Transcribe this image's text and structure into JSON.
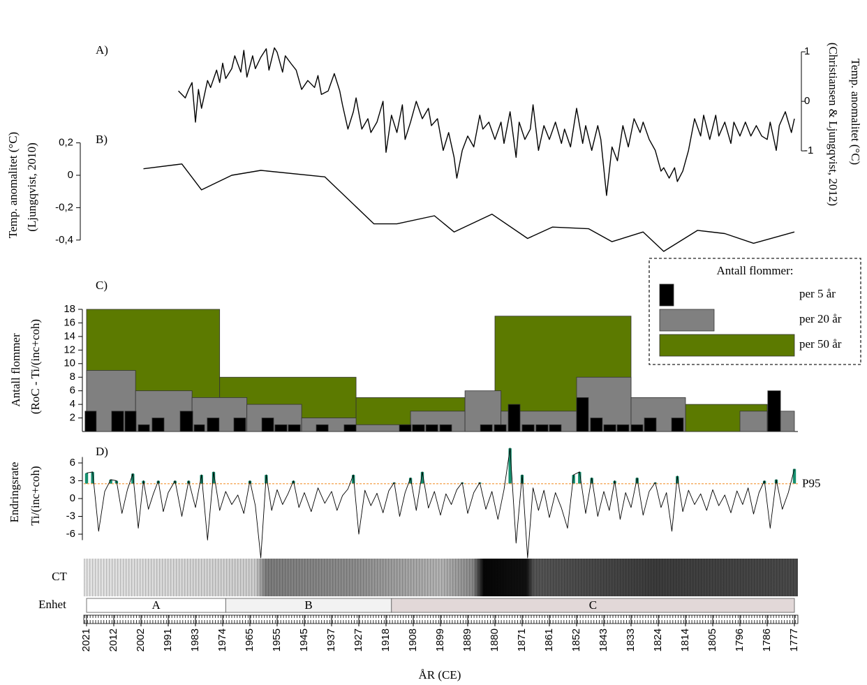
{
  "x_axis": {
    "xlabel": "ÅR (CE)",
    "xlim": [
      2021,
      1777
    ],
    "xticks": [
      2021,
      2012,
      2002,
      1991,
      1983,
      1974,
      1965,
      1955,
      1945,
      1937,
      1927,
      1918,
      1908,
      1899,
      1889,
      1880,
      1871,
      1861,
      1852,
      1843,
      1833,
      1824,
      1814,
      1805,
      1796,
      1786,
      1777
    ],
    "xtick_colors": [
      "#000000",
      "#000000",
      "#000000",
      "#000000",
      "#000000",
      "#000000",
      "#000000",
      "#000000",
      "#000000",
      "#000000",
      "#000000",
      "#000000",
      "#000000",
      "#000000",
      "#000000",
      "#000000",
      "#e8141b",
      "#e8141b",
      "#e8141b",
      "#e8141b",
      "#e8141b",
      "#e8141b",
      "#e8141b",
      "#e8141b",
      "#e8141b",
      "#e8141b",
      "#e8141b"
    ]
  },
  "chart_data": [
    {
      "type": "line",
      "panel_label": "A)",
      "ylabel": [
        "Temp. anomalitet (°C)",
        "(Christiansen & Ljungqvist, 2012)"
      ],
      "y_axis_side": "right",
      "ylim": [
        -2,
        1.2
      ],
      "yticks": [
        1,
        0,
        -1
      ],
      "color": "#000000",
      "x": [
        1988,
        1986,
        1985,
        1984,
        1983,
        1982,
        1981,
        1979,
        1978,
        1976,
        1975,
        1974,
        1973,
        1971,
        1970,
        1968,
        1967,
        1966,
        1964,
        1963,
        1961,
        1959,
        1958,
        1956,
        1955,
        1953,
        1952,
        1950,
        1948,
        1946,
        1944,
        1942,
        1941,
        1940,
        1938,
        1936,
        1934,
        1933,
        1931,
        1929,
        1928,
        1926,
        1924,
        1923,
        1921,
        1919,
        1918,
        1916,
        1914,
        1912,
        1911,
        1909,
        1907,
        1905,
        1903,
        1902,
        1900,
        1898,
        1896,
        1894,
        1893,
        1891,
        1889,
        1887,
        1885,
        1884,
        1882,
        1880,
        1878,
        1877,
        1875,
        1873,
        1872,
        1870,
        1868,
        1867,
        1865,
        1863,
        1861,
        1859,
        1857,
        1856,
        1854,
        1852,
        1850,
        1849,
        1847,
        1845,
        1844,
        1842,
        1840,
        1838,
        1836,
        1834,
        1832,
        1830,
        1829,
        1827,
        1825,
        1823,
        1822,
        1820,
        1818,
        1817,
        1815,
        1813,
        1811,
        1809,
        1808,
        1806,
        1804,
        1803,
        1801,
        1799,
        1798,
        1796,
        1794,
        1792,
        1790,
        1788,
        1786,
        1785,
        1783,
        1782,
        1780,
        1778,
        1777
      ],
      "values": [
        0.21,
        0.07,
        0.24,
        0.38,
        -0.42,
        0.24,
        -0.14,
        0.42,
        0.28,
        0.63,
        0.38,
        0.77,
        0.46,
        0.66,
        0.92,
        0.59,
        1.03,
        0.49,
        0.92,
        0.66,
        0.89,
        1.06,
        0.63,
        1.08,
        0.99,
        0.59,
        0.92,
        0.77,
        0.63,
        0.24,
        0.42,
        0.28,
        0.52,
        0.14,
        0.21,
        0.56,
        0.21,
        -0.07,
        -0.56,
        -0.21,
        0.07,
        -0.56,
        -0.35,
        -0.63,
        -0.42,
        0,
        -1.03,
        -0.28,
        -0.63,
        -0.07,
        -0.77,
        -0.42,
        0,
        -0.35,
        -0.14,
        -0.49,
        -0.35,
        -0.99,
        -0.63,
        -1.13,
        -1.55,
        -0.99,
        -0.7,
        -0.92,
        -0.28,
        -0.56,
        -0.42,
        -0.77,
        -0.42,
        -0.85,
        -0.21,
        -1.13,
        -0.42,
        -0.77,
        -0.56,
        -0.07,
        -0.99,
        -0.49,
        -0.77,
        -0.42,
        -0.85,
        -0.56,
        -0.92,
        -0.14,
        -0.85,
        -0.49,
        -0.99,
        -0.49,
        -0.77,
        -1.9,
        -0.92,
        -1.2,
        -0.49,
        -0.92,
        -0.35,
        -0.63,
        -0.42,
        -0.77,
        -0.99,
        -1.41,
        -1.34,
        -1.55,
        -1.34,
        -1.62,
        -1.41,
        -0.99,
        -0.35,
        -0.7,
        -0.28,
        -0.77,
        -0.28,
        -0.7,
        -0.42,
        -0.85,
        -0.42,
        -0.7,
        -0.42,
        -0.7,
        -0.49,
        -0.7,
        -0.77,
        -0.42,
        -0.99,
        -0.49,
        -0.21,
        -0.63,
        -0.35
      ]
    },
    {
      "type": "line",
      "panel_label": "B)",
      "ylabel": [
        "Temp. anomalitet (°C)",
        "(Ljungqvist, 2010)"
      ],
      "y_axis_side": "left",
      "ylim": [
        -0.5,
        0.25
      ],
      "yticks": [
        {
          "value": 0.2,
          "label": "0,2"
        },
        0,
        {
          "value": -0.2,
          "label": "-0,2"
        },
        {
          "value": -0.4,
          "label": "-0,4"
        }
      ],
      "color": "#000000",
      "x": [
        2001,
        1987,
        1981,
        1971,
        1961,
        1939,
        1922,
        1914,
        1901,
        1894,
        1881,
        1869,
        1860,
        1848,
        1840,
        1829,
        1822,
        1810,
        1801,
        1791,
        1777
      ],
      "values": [
        0.04,
        0.07,
        -0.09,
        0,
        0.03,
        -0.01,
        -0.3,
        -0.3,
        -0.25,
        -0.35,
        -0.24,
        -0.39,
        -0.32,
        -0.33,
        -0.41,
        -0.35,
        -0.47,
        -0.34,
        -0.36,
        -0.42,
        -0.35
      ]
    },
    {
      "type": "bar",
      "panel_label": "C)",
      "ylabel": [
        "Antall flommer",
        "(RoC - Ti/(inc+coh)"
      ],
      "y_axis_side": "left",
      "ylim": [
        0,
        18
      ],
      "yticks": [
        2,
        4,
        6,
        8,
        10,
        12,
        14,
        16,
        18
      ],
      "legend": {
        "title": "Antall flommer:",
        "position": "upper right"
      },
      "series": [
        {
          "name": "per 5 år",
          "color": "#000000",
          "bins": [
            [
              2021.5,
              2017.8
            ],
            [
              2012.7,
              2008.4
            ],
            [
              2007.9,
              2003.8
            ],
            [
              2003.0,
              1998.6
            ],
            [
              1997.5,
              1992.7
            ],
            [
              1987.5,
              1983.8
            ],
            [
              1983.4,
              1980.0
            ],
            [
              1979.1,
              1975.2
            ],
            [
              1970.3,
              1966.4
            ],
            [
              1960.6,
              1956.3
            ],
            [
              1955.8,
              1951.4
            ],
            [
              1950.9,
              1946.5
            ],
            [
              1941.5,
              1938.0
            ],
            [
              1932.4,
              1928.0
            ],
            [
              1913.1,
              1908.8
            ],
            [
              1908.3,
              1904.3
            ],
            [
              1903.8,
              1899.9
            ],
            [
              1899.2,
              1894.9
            ],
            [
              1884.8,
              1880.9
            ],
            [
              1880.2,
              1876.3
            ],
            [
              1875.6,
              1871.7
            ],
            [
              1871.0,
              1866.6
            ],
            [
              1865.9,
              1861.5
            ],
            [
              1861.0,
              1857.1
            ],
            [
              1852.0,
              1848.1
            ],
            [
              1847.4,
              1843.5
            ],
            [
              1843.0,
              1838.6
            ],
            [
              1838.1,
              1833.8
            ],
            [
              1833.0,
              1829.1
            ],
            [
              1828.6,
              1824.7
            ],
            [
              1819.1,
              1814.8
            ],
            [
              1785.8,
              1781.6
            ]
          ],
          "values": [
            3,
            3,
            3,
            1,
            2,
            3,
            1,
            2,
            2,
            2,
            1,
            1,
            1,
            1,
            1,
            1,
            1,
            1,
            1,
            1,
            4,
            1,
            1,
            1,
            5,
            2,
            1,
            1,
            1,
            2,
            2,
            6
          ]
        },
        {
          "name": "per 20 år",
          "color": "#808080",
          "bins": [
            [
              2021,
              2004
            ],
            [
              2004,
              1984
            ],
            [
              1984,
              1966
            ],
            [
              1966,
              1946
            ],
            [
              1946,
              1928
            ],
            [
              1928,
              1909
            ],
            [
              1909,
              1890
            ],
            [
              1890,
              1878
            ],
            [
              1878,
              1852
            ],
            [
              1852,
              1833
            ],
            [
              1833,
              1814
            ],
            [
              1796,
              1786
            ],
            [
              1782,
              1777
            ]
          ],
          "values": [
            9,
            6,
            5,
            4,
            2,
            1,
            3,
            6,
            3,
            8,
            5,
            3,
            3
          ]
        },
        {
          "name": "per 50 år",
          "color": "#5c7a00",
          "bins": [
            [
              2021,
              1975
            ],
            [
              1975,
              1928
            ],
            [
              1928,
              1890
            ],
            [
              1880,
              1833
            ],
            [
              1814,
              1786
            ]
          ],
          "values": [
            18,
            8,
            5,
            17,
            4
          ]
        }
      ]
    },
    {
      "type": "line",
      "panel_label": "D)",
      "ylabel": [
        "Endringsrate",
        "Ti/(inc+coh)"
      ],
      "y_axis_side": "left",
      "ylim": [
        -7,
        7
      ],
      "yticks": [
        6,
        3,
        0,
        -3,
        -6
      ],
      "color": "#000000",
      "threshold": {
        "value": 2.5,
        "label": "P95",
        "color": "#f5a04a"
      },
      "exceed_color": "#168f6e",
      "x": [
        2021,
        2019,
        2017,
        2015,
        2013,
        2011,
        2009,
        2007,
        2005,
        2003,
        2001,
        1999,
        1997,
        1995,
        1993,
        1991,
        1989,
        1987,
        1985,
        1983,
        1981,
        1979,
        1977,
        1975,
        1973,
        1971,
        1969,
        1967,
        1965,
        1963,
        1961,
        1959,
        1957,
        1955,
        1953,
        1951,
        1949,
        1947,
        1945,
        1943,
        1941,
        1939,
        1937,
        1935,
        1933,
        1931,
        1929,
        1927,
        1925,
        1923,
        1921,
        1919,
        1917,
        1915,
        1913,
        1911,
        1909,
        1907,
        1905,
        1903,
        1901,
        1899,
        1897,
        1895,
        1893,
        1891,
        1889,
        1887,
        1885,
        1883,
        1881,
        1879,
        1877,
        1875,
        1873,
        1871,
        1869,
        1867,
        1865,
        1863,
        1861,
        1859,
        1857,
        1855,
        1853,
        1851,
        1849,
        1847,
        1845,
        1843,
        1841,
        1839,
        1837,
        1835,
        1833,
        1831,
        1829,
        1827,
        1825,
        1823,
        1821,
        1819,
        1817,
        1815,
        1813,
        1811,
        1809,
        1807,
        1805,
        1803,
        1801,
        1799,
        1797,
        1795,
        1793,
        1791,
        1789,
        1787,
        1785,
        1783,
        1781,
        1779,
        1777
      ],
      "values": [
        4.3,
        4.5,
        -5.5,
        1.2,
        3.2,
        3.0,
        -2.5,
        1.5,
        4.2,
        -5,
        3.0,
        -1.8,
        0.8,
        3.0,
        -2.2,
        1.0,
        3.0,
        -3.0,
        3.0,
        -1.5,
        4.0,
        -7,
        4.5,
        -2.0,
        1.2,
        -1.0,
        0.6,
        -2.5,
        3.0,
        -1.2,
        -10,
        4.0,
        -2.0,
        1.5,
        -1.0,
        0.8,
        3.0,
        -1.5,
        1.0,
        -2.2,
        1.8,
        -0.8,
        1.2,
        -2.0,
        0.5,
        1.6,
        4.0,
        -6,
        1.4,
        -1.2,
        0.9,
        -2.4,
        1.3,
        2.7,
        -3.0,
        1.0,
        3.5,
        -2.0,
        4.5,
        -1.6,
        1.2,
        -2.8,
        0.8,
        -1.0,
        1.5,
        2.7,
        -2.5,
        1.0,
        2.7,
        -1.8,
        1.2,
        -3.5,
        1.5,
        8.5,
        -7.5,
        4.0,
        -10,
        1.8,
        -2.0,
        1.4,
        -3.2,
        1.0,
        -1.6,
        -5,
        4.0,
        4.5,
        -2.5,
        3.5,
        -3.0,
        1.2,
        -2.0,
        3.0,
        -3.5,
        1.0,
        -1.5,
        3.5,
        -2.8,
        1.2,
        2.7,
        -1.5,
        1.0,
        -5.5,
        3.8,
        -2.2,
        1.4,
        -1.0,
        0.8,
        -2.0,
        1.5,
        -1.2,
        0.6,
        -2.4,
        1.3,
        -1.0,
        1.8,
        -2.6,
        1.0,
        3.0,
        -5,
        3.2,
        -1.8,
        1.0,
        5.0
      ]
    }
  ],
  "ct": {
    "label": "CT"
  },
  "units": {
    "label": "Enhet",
    "segments": [
      {
        "label": "A",
        "start": 2021,
        "end": 1973,
        "color": "#ffffff"
      },
      {
        "label": "B",
        "start": 1973,
        "end": 1916,
        "color": "#f2f2f2"
      },
      {
        "label": "C",
        "start": 1916,
        "end": 1777,
        "color": "#e2d8d8"
      }
    ]
  }
}
